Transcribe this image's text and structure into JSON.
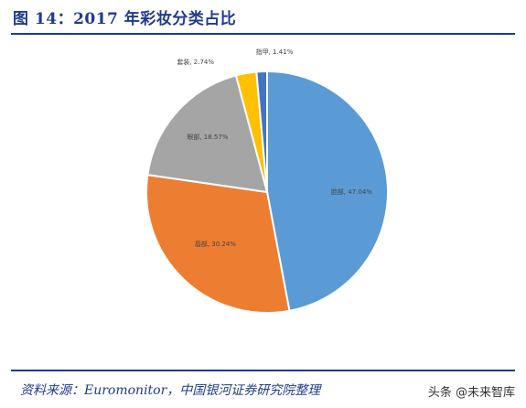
{
  "header": {
    "title": "图 14：2017 年彩妆分类占比"
  },
  "chart_data": {
    "type": "pie",
    "title": "",
    "slices": [
      {
        "name": "脸部",
        "value": 47.04,
        "label": "脸部, 47.04%",
        "color": "#5b9bd5"
      },
      {
        "name": "唇部",
        "value": 30.24,
        "label": "唇部, 30.24%",
        "color": "#ed7d31"
      },
      {
        "name": "眼部",
        "value": 18.57,
        "label": "眼部, 18.57%",
        "color": "#a5a5a5"
      },
      {
        "name": "套装",
        "value": 2.74,
        "label": "套装, 2.74%",
        "color": "#ffc000"
      },
      {
        "name": "指甲",
        "value": 1.41,
        "label": "指甲, 1.41%",
        "color": "#4472c4"
      }
    ],
    "start": "12 o'clock",
    "direction": "clockwise",
    "legend": "none"
  },
  "footer": {
    "source": "资料来源：Euromonitor，中国银河证券研究院整理",
    "watermark": "头条 @未来智库"
  }
}
